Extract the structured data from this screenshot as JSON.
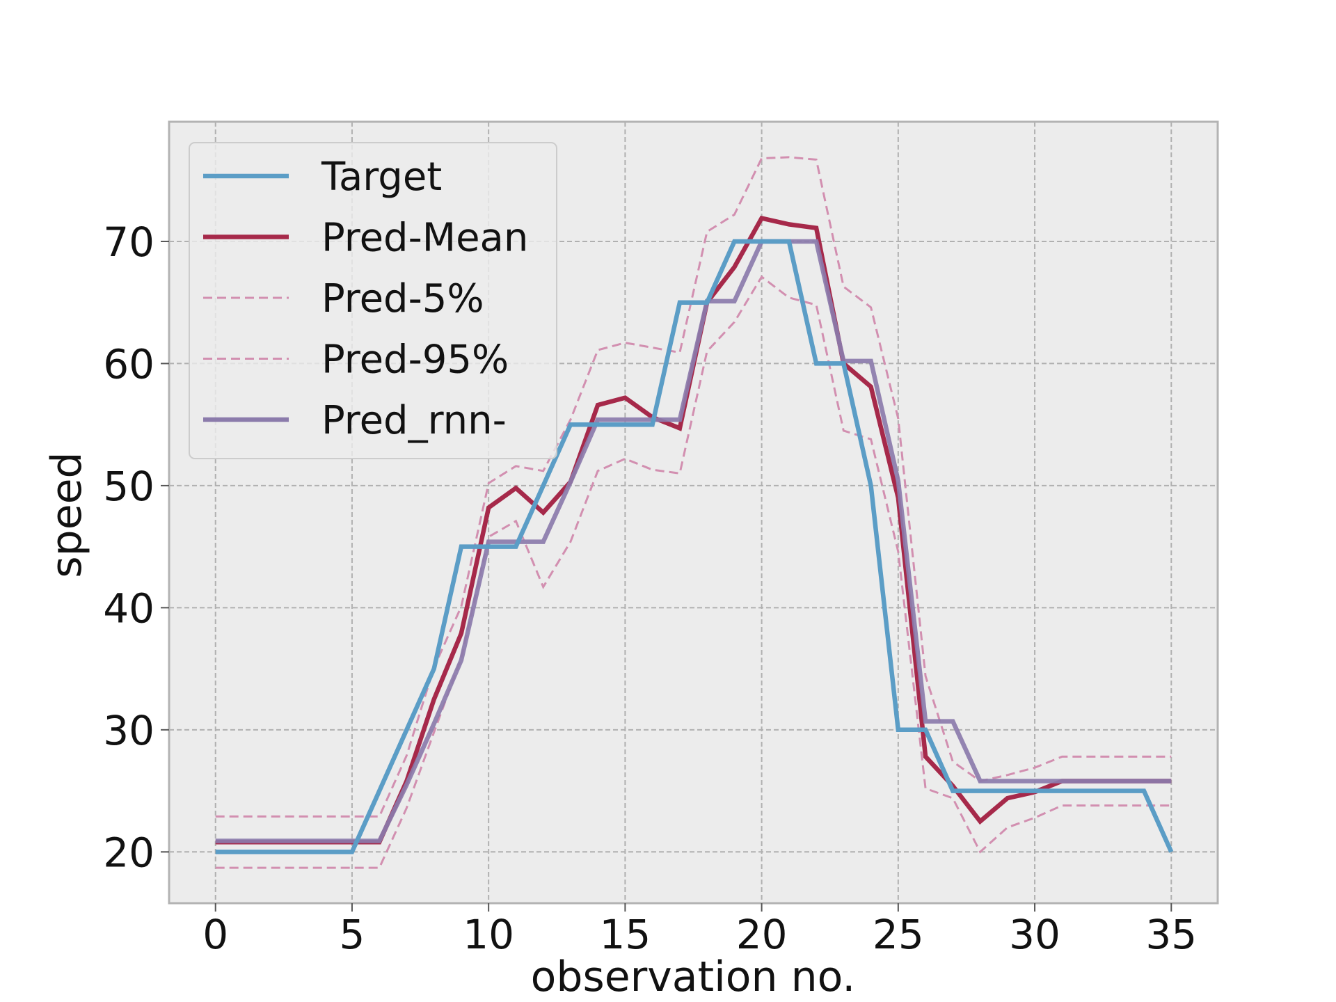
{
  "chart_data": {
    "type": "line",
    "title": "",
    "xlabel": "observation no.",
    "ylabel": "speed",
    "xlim": [
      -1.7,
      36.7
    ],
    "ylim": [
      15.8,
      79.8
    ],
    "xticks": [
      0,
      5,
      10,
      15,
      20,
      25,
      30,
      35
    ],
    "yticks": [
      20,
      30,
      40,
      50,
      60,
      70
    ],
    "xtick_labels": [
      "0",
      "5",
      "10",
      "15",
      "20",
      "25",
      "30",
      "35"
    ],
    "ytick_labels": [
      "20",
      "30",
      "40",
      "50",
      "60",
      "70"
    ],
    "grid": true,
    "legend_position": "top-left",
    "x": [
      0,
      1,
      2,
      3,
      4,
      5,
      6,
      7,
      8,
      9,
      10,
      11,
      12,
      13,
      14,
      15,
      16,
      17,
      18,
      19,
      20,
      21,
      22,
      23,
      24,
      25,
      26,
      27,
      28,
      29,
      30,
      31,
      32,
      33,
      34,
      35
    ],
    "series": [
      {
        "name": "Target",
        "color": "#5b9dc6",
        "style": "solid",
        "values": [
          20,
          20,
          20,
          20,
          20,
          20,
          25,
          30,
          35,
          45,
          45,
          45,
          50,
          55,
          55,
          55,
          55,
          65,
          65,
          70,
          70,
          70,
          60,
          60,
          50,
          30,
          30,
          25,
          25,
          25,
          25,
          25,
          25,
          25,
          25,
          20
        ]
      },
      {
        "name": "Pred-Mean",
        "color": "#a6294a",
        "style": "solid",
        "values": [
          20.8,
          20.8,
          20.8,
          20.8,
          20.8,
          20.8,
          20.8,
          25.8,
          32.5,
          37.9,
          48.2,
          49.8,
          47.8,
          50.3,
          56.6,
          57.2,
          55.6,
          54.7,
          65,
          67.9,
          71.9,
          71.4,
          71.1,
          60,
          58.1,
          49,
          27.8,
          25.4,
          22.5,
          24.4,
          24.9,
          25.8,
          25.8,
          25.8,
          25.8,
          25.8
        ]
      },
      {
        "name": "Pred-5%",
        "color": "#d28fb0",
        "style": "dashed",
        "values": [
          18.7,
          18.7,
          18.7,
          18.7,
          18.7,
          18.7,
          18.7,
          23.6,
          29.8,
          35.9,
          45.8,
          47.1,
          41.7,
          45.4,
          51.2,
          52.2,
          51.3,
          51,
          61,
          63.4,
          67.1,
          65.4,
          64.8,
          54.5,
          53.8,
          44.6,
          25.2,
          24.4,
          20,
          22,
          22.8,
          23.8,
          23.8,
          23.8,
          23.8,
          23.8
        ]
      },
      {
        "name": "Pred-95%",
        "color": "#d28fb0",
        "style": "dashed",
        "values": [
          22.9,
          22.9,
          22.9,
          22.9,
          22.9,
          22.9,
          22.9,
          27.9,
          35.1,
          40.1,
          50.2,
          51.6,
          51.2,
          55.4,
          61.1,
          61.7,
          61.3,
          60.9,
          70.8,
          72.2,
          76.8,
          76.9,
          76.7,
          66.3,
          64.6,
          55.5,
          34.4,
          27.4,
          25.8,
          26.3,
          26.9,
          27.8,
          27.8,
          27.8,
          27.8,
          27.8
        ]
      },
      {
        "name": "Pred_rnn-",
        "color": "#8b7bab",
        "style": "solid",
        "values": [
          20.9,
          20.9,
          20.9,
          20.9,
          20.9,
          20.9,
          20.9,
          25.5,
          30.5,
          35.7,
          45.4,
          45.4,
          45.4,
          50.3,
          55.4,
          55.4,
          55.4,
          55.4,
          65.1,
          65.1,
          70,
          70,
          70,
          60.2,
          60.2,
          50.4,
          30.7,
          30.7,
          25.8,
          25.8,
          25.8,
          25.8,
          25.8,
          25.8,
          25.8,
          25.8
        ]
      }
    ]
  }
}
